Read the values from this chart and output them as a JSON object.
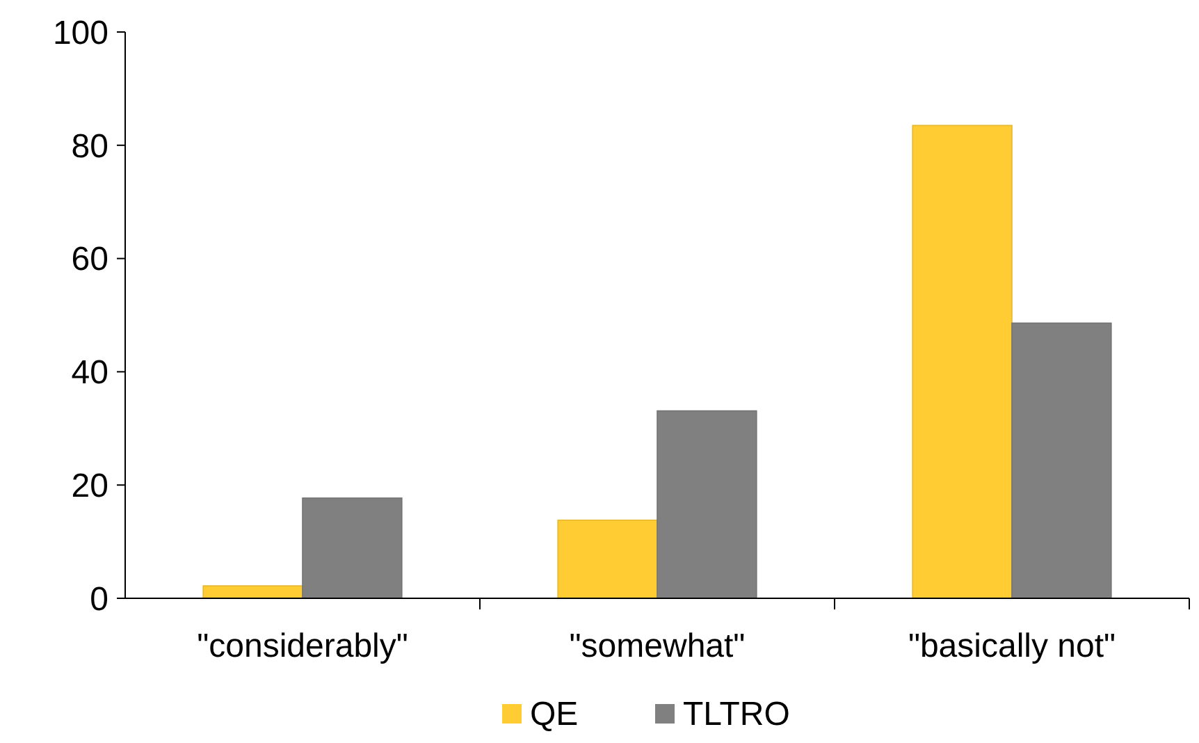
{
  "chart_data": {
    "type": "bar",
    "categories": [
      "\"considerably\"",
      "\"somewhat\"",
      "\"basically not\""
    ],
    "series": [
      {
        "name": "QE",
        "color": "#ffcc33",
        "values": [
          2.2,
          13.8,
          83.5
        ]
      },
      {
        "name": "TLTRO",
        "color": "#808080",
        "values": [
          17.7,
          33.1,
          48.6
        ]
      }
    ],
    "ylim": [
      0,
      100
    ],
    "yticks": [
      0,
      20,
      40,
      60,
      80,
      100
    ],
    "grid": false,
    "legend": "bottom"
  }
}
